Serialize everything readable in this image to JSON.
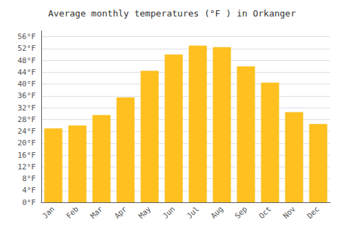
{
  "chart_data": {
    "type": "bar",
    "title": "Average monthly temperatures (°F ) in Orkanger",
    "categories": [
      "Jan",
      "Feb",
      "Mar",
      "Apr",
      "May",
      "Jun",
      "Jul",
      "Aug",
      "Sep",
      "Oct",
      "Nov",
      "Dec"
    ],
    "values": [
      25,
      26,
      29.5,
      35.5,
      44.5,
      50,
      53,
      52.5,
      46,
      40.5,
      30.5,
      26.5
    ],
    "color": "#FFC020",
    "ylim": [
      0,
      58
    ],
    "yticks": [
      {
        "value": 0,
        "label": "0°F"
      },
      {
        "value": 4,
        "label": "4°F"
      },
      {
        "value": 8,
        "label": "8°F"
      },
      {
        "value": 12,
        "label": "12°F"
      },
      {
        "value": 16,
        "label": "16°F"
      },
      {
        "value": 20,
        "label": "20°F"
      },
      {
        "value": 24,
        "label": "24°F"
      },
      {
        "value": 28,
        "label": "28°F"
      },
      {
        "value": 32,
        "label": "32°F"
      },
      {
        "value": 36,
        "label": "36°F"
      },
      {
        "value": 40,
        "label": "40°F"
      },
      {
        "value": 44,
        "label": "44°F"
      },
      {
        "value": 48,
        "label": "48°F"
      },
      {
        "value": 52,
        "label": "52°F"
      },
      {
        "value": 56,
        "label": "56°F"
      }
    ],
    "grid": true
  }
}
